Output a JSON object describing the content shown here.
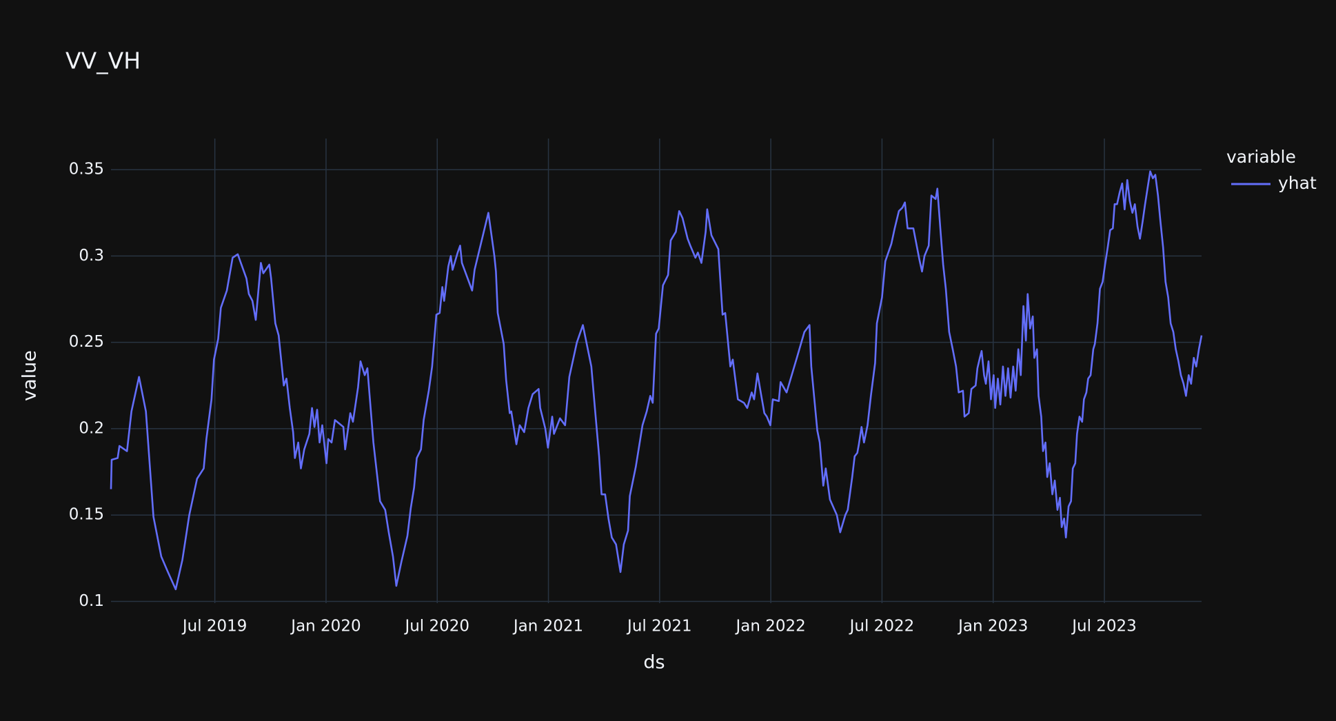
{
  "chart_data": {
    "type": "line",
    "title": "VV_VH",
    "x_label": "ds",
    "y_label": "value",
    "legend_title": "variable",
    "x": [
      2019.033,
      2019.036,
      2019.063,
      2019.071,
      2019.105,
      2019.125,
      2019.159,
      2019.19,
      2019.224,
      2019.259,
      2019.289,
      2019.324,
      2019.354,
      2019.385,
      2019.42,
      2019.45,
      2019.462,
      2019.485,
      2019.496,
      2019.515,
      2019.527,
      2019.554,
      2019.58,
      2019.603,
      2019.642,
      2019.653,
      2019.669,
      2019.684,
      2019.707,
      2019.718,
      2019.745,
      2019.753,
      2019.772,
      2019.787,
      2019.81,
      2019.822,
      2019.837,
      2019.852,
      2019.86,
      2019.875,
      2019.887,
      2019.902,
      2019.925,
      2019.937,
      2019.948,
      2019.96,
      2019.971,
      2019.983,
      2020.002,
      2020.01,
      2020.025,
      2020.04,
      2020.078,
      2020.086,
      2020.109,
      2020.121,
      2020.144,
      2020.155,
      2020.174,
      2020.186,
      2020.213,
      2020.243,
      2020.266,
      2020.282,
      2020.301,
      2020.316,
      2020.339,
      2020.366,
      2020.381,
      2020.396,
      2020.408,
      2020.427,
      2020.439,
      2020.462,
      2020.477,
      2020.496,
      2020.511,
      2020.523,
      2020.531,
      2020.55,
      2020.561,
      2020.569,
      2020.592,
      2020.603,
      2020.611,
      2020.634,
      2020.657,
      2020.668,
      2020.73,
      2020.757,
      2020.764,
      2020.772,
      2020.799,
      2020.81,
      2020.826,
      2020.833,
      2020.856,
      2020.871,
      2020.891,
      2020.91,
      2020.929,
      2020.956,
      2020.963,
      2020.986,
      2020.998,
      2021.017,
      2021.025,
      2021.052,
      2021.075,
      2021.094,
      2021.128,
      2021.155,
      2021.193,
      2021.209,
      2021.228,
      2021.239,
      2021.255,
      2021.27,
      2021.285,
      2021.304,
      2021.324,
      2021.339,
      2021.358,
      2021.366,
      2021.393,
      2021.423,
      2021.442,
      2021.458,
      2021.469,
      2021.484,
      2021.496,
      2021.515,
      2021.538,
      2021.55,
      2021.573,
      2021.588,
      2021.603,
      2021.626,
      2021.638,
      2021.661,
      2021.672,
      2021.688,
      2021.707,
      2021.714,
      2021.733,
      2021.764,
      2021.783,
      2021.795,
      2021.818,
      2021.829,
      2021.852,
      2021.879,
      2021.894,
      2021.914,
      2021.925,
      2021.94,
      2021.956,
      2021.971,
      2021.982,
      2021.998,
      2022.009,
      2022.036,
      2022.044,
      2022.071,
      2022.094,
      2022.117,
      2022.151,
      2022.174,
      2022.182,
      2022.209,
      2022.22,
      2022.236,
      2022.247,
      2022.266,
      2022.297,
      2022.312,
      2022.335,
      2022.346,
      2022.366,
      2022.377,
      2022.389,
      2022.396,
      2022.408,
      2022.419,
      2022.435,
      2022.45,
      2022.469,
      2022.477,
      2022.5,
      2022.515,
      2022.542,
      2022.557,
      2022.576,
      2022.592,
      2022.603,
      2022.615,
      2022.641,
      2022.668,
      2022.68,
      2022.691,
      2022.71,
      2022.722,
      2022.741,
      2022.749,
      2022.764,
      2022.775,
      2022.787,
      2022.802,
      2022.818,
      2022.833,
      2022.845,
      2022.864,
      2022.871,
      2022.89,
      2022.902,
      2022.921,
      2022.929,
      2022.94,
      2022.948,
      2022.959,
      2022.967,
      2022.979,
      2022.99,
      2023.002,
      2023.009,
      2023.021,
      2023.032,
      2023.044,
      2023.055,
      2023.067,
      2023.078,
      2023.09,
      2023.101,
      2023.113,
      2023.124,
      2023.136,
      2023.147,
      2023.155,
      2023.166,
      2023.178,
      2023.185,
      2023.197,
      2023.204,
      2023.216,
      2023.224,
      2023.235,
      2023.243,
      2023.254,
      2023.266,
      2023.277,
      2023.289,
      2023.3,
      2023.308,
      2023.319,
      2023.327,
      2023.339,
      2023.35,
      2023.358,
      2023.369,
      2023.377,
      2023.388,
      2023.4,
      2023.408,
      2023.419,
      2023.427,
      2023.438,
      2023.45,
      2023.457,
      2023.469,
      2023.48,
      2023.492,
      2023.503,
      2023.515,
      2023.526,
      2023.538,
      2023.546,
      2023.557,
      2023.569,
      2023.58,
      2023.591,
      2023.603,
      2023.614,
      2023.626,
      2023.637,
      2023.649,
      2023.66,
      2023.672,
      2023.683,
      2023.695,
      2023.706,
      2023.718,
      2023.729,
      2023.741,
      2023.752,
      2023.764,
      2023.775,
      2023.787,
      2023.798,
      2023.81,
      2023.821,
      2023.833,
      2023.844,
      2023.856,
      2023.867,
      2023.879,
      2023.89,
      2023.902,
      2023.913,
      2023.925,
      2023.937
    ],
    "series": [
      {
        "name": "yhat",
        "color": "#636efa",
        "values": [
          0.165,
          0.182,
          0.183,
          0.19,
          0.187,
          0.21,
          0.23,
          0.21,
          0.149,
          0.126,
          0.117,
          0.107,
          0.124,
          0.15,
          0.171,
          0.177,
          0.194,
          0.217,
          0.24,
          0.252,
          0.27,
          0.28,
          0.299,
          0.301,
          0.287,
          0.278,
          0.274,
          0.263,
          0.296,
          0.29,
          0.295,
          0.287,
          0.261,
          0.254,
          0.225,
          0.229,
          0.212,
          0.198,
          0.183,
          0.192,
          0.177,
          0.188,
          0.197,
          0.212,
          0.201,
          0.211,
          0.192,
          0.202,
          0.18,
          0.194,
          0.192,
          0.205,
          0.201,
          0.188,
          0.209,
          0.204,
          0.224,
          0.239,
          0.231,
          0.235,
          0.192,
          0.158,
          0.153,
          0.14,
          0.126,
          0.109,
          0.123,
          0.138,
          0.154,
          0.166,
          0.183,
          0.188,
          0.205,
          0.222,
          0.236,
          0.266,
          0.267,
          0.282,
          0.274,
          0.294,
          0.3,
          0.292,
          0.302,
          0.306,
          0.296,
          0.288,
          0.28,
          0.292,
          0.325,
          0.3,
          0.291,
          0.267,
          0.249,
          0.228,
          0.209,
          0.21,
          0.191,
          0.202,
          0.198,
          0.212,
          0.22,
          0.223,
          0.212,
          0.2,
          0.189,
          0.207,
          0.197,
          0.206,
          0.202,
          0.23,
          0.25,
          0.26,
          0.236,
          0.212,
          0.184,
          0.162,
          0.162,
          0.148,
          0.137,
          0.133,
          0.117,
          0.133,
          0.141,
          0.161,
          0.178,
          0.202,
          0.21,
          0.219,
          0.215,
          0.255,
          0.258,
          0.283,
          0.289,
          0.309,
          0.314,
          0.326,
          0.322,
          0.31,
          0.306,
          0.299,
          0.302,
          0.296,
          0.314,
          0.327,
          0.312,
          0.304,
          0.266,
          0.267,
          0.236,
          0.24,
          0.217,
          0.215,
          0.212,
          0.221,
          0.217,
          0.232,
          0.22,
          0.209,
          0.207,
          0.202,
          0.217,
          0.216,
          0.227,
          0.221,
          0.231,
          0.241,
          0.256,
          0.26,
          0.236,
          0.199,
          0.192,
          0.167,
          0.177,
          0.159,
          0.15,
          0.14,
          0.15,
          0.153,
          0.172,
          0.184,
          0.186,
          0.191,
          0.201,
          0.192,
          0.202,
          0.219,
          0.238,
          0.261,
          0.276,
          0.297,
          0.307,
          0.316,
          0.326,
          0.328,
          0.331,
          0.316,
          0.316,
          0.298,
          0.291,
          0.3,
          0.306,
          0.335,
          0.333,
          0.339,
          0.313,
          0.295,
          0.281,
          0.256,
          0.246,
          0.236,
          0.221,
          0.222,
          0.207,
          0.209,
          0.223,
          0.225,
          0.235,
          0.241,
          0.245,
          0.231,
          0.226,
          0.239,
          0.217,
          0.231,
          0.212,
          0.229,
          0.214,
          0.236,
          0.219,
          0.235,
          0.218,
          0.236,
          0.222,
          0.246,
          0.231,
          0.271,
          0.251,
          0.278,
          0.258,
          0.265,
          0.241,
          0.246,
          0.219,
          0.207,
          0.187,
          0.192,
          0.172,
          0.18,
          0.162,
          0.17,
          0.153,
          0.16,
          0.143,
          0.148,
          0.137,
          0.155,
          0.158,
          0.177,
          0.18,
          0.197,
          0.207,
          0.204,
          0.217,
          0.221,
          0.229,
          0.231,
          0.246,
          0.249,
          0.261,
          0.281,
          0.285,
          0.295,
          0.305,
          0.315,
          0.316,
          0.33,
          0.33,
          0.337,
          0.342,
          0.327,
          0.344,
          0.332,
          0.325,
          0.33,
          0.317,
          0.31,
          0.32,
          0.33,
          0.34,
          0.349,
          0.345,
          0.347,
          0.335,
          0.32,
          0.305,
          0.285,
          0.276,
          0.261,
          0.256,
          0.246,
          0.239,
          0.231,
          0.226,
          0.219,
          0.231,
          0.226,
          0.241,
          0.236,
          0.246,
          0.254
        ]
      }
    ],
    "xlim": [
      2019.033,
      2023.937
    ],
    "xticks": [
      {
        "value": 2019.5,
        "label": "Jul 2019"
      },
      {
        "value": 2020,
        "label": "Jan 2020"
      },
      {
        "value": 2020.5,
        "label": "Jul 2020"
      },
      {
        "value": 2021,
        "label": "Jan 2021"
      },
      {
        "value": 2021.5,
        "label": "Jul 2021"
      },
      {
        "value": 2022,
        "label": "Jan 2022"
      },
      {
        "value": 2022.5,
        "label": "Jul 2022"
      },
      {
        "value": 2023,
        "label": "Jan 2023"
      },
      {
        "value": 2023.5,
        "label": "Jul 2023"
      }
    ],
    "ylim": [
      0.099,
      0.368
    ],
    "yticks": [
      0.1,
      0.15,
      0.2,
      0.25,
      0.3,
      0.35
    ],
    "grid": true,
    "legend": "right",
    "background": "#111111",
    "grid_color": "#283442"
  }
}
